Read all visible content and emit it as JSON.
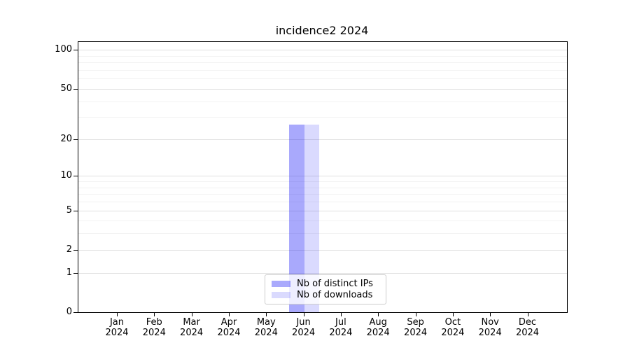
{
  "header": {
    "title": "incidence2 2024"
  },
  "chart_data": {
    "type": "bar",
    "title": "incidence2 2024",
    "categories": [
      "Jan 2024",
      "Feb 2024",
      "Mar 2024",
      "Apr 2024",
      "May 2024",
      "Jun 2024",
      "Jul 2024",
      "Aug 2024",
      "Sep 2024",
      "Oct 2024",
      "Nov 2024",
      "Dec 2024"
    ],
    "series": [
      {
        "name": "Nb of distinct IPs",
        "color_rgba": "rgba(10,10,245,0.35)",
        "color_hex_on_white": "#a9a9f8",
        "values": [
          0,
          0,
          0,
          0,
          0,
          26,
          0,
          0,
          0,
          0,
          0,
          0
        ]
      },
      {
        "name": "Nb of downloads",
        "color_rgba": "rgba(10,10,245,0.15)",
        "color_hex_on_white": "#dcdcfa",
        "values": [
          0,
          0,
          0,
          0,
          0,
          26,
          0,
          0,
          0,
          0,
          0,
          0
        ]
      }
    ],
    "xlabel": "",
    "ylabel": "",
    "y_scale": "log(1+x)",
    "y_major_ticks": [
      0,
      1,
      2,
      5,
      10,
      20,
      50,
      100
    ],
    "y_minor_gridlines": [
      3,
      4,
      6,
      7,
      8,
      9,
      30,
      40,
      60,
      70,
      80,
      90
    ],
    "ylim": [
      0,
      115
    ],
    "grid": true,
    "legend_position": "lower center"
  },
  "colors": {
    "background": "#ffffff",
    "spine": "#000000",
    "grid_major": "#e0e0e0",
    "grid_minor": "#f2f2f2",
    "legend_border": "#cccccc",
    "bar_distinct_ips": "#a9a9f8",
    "bar_downloads": "#dcdcfa"
  }
}
